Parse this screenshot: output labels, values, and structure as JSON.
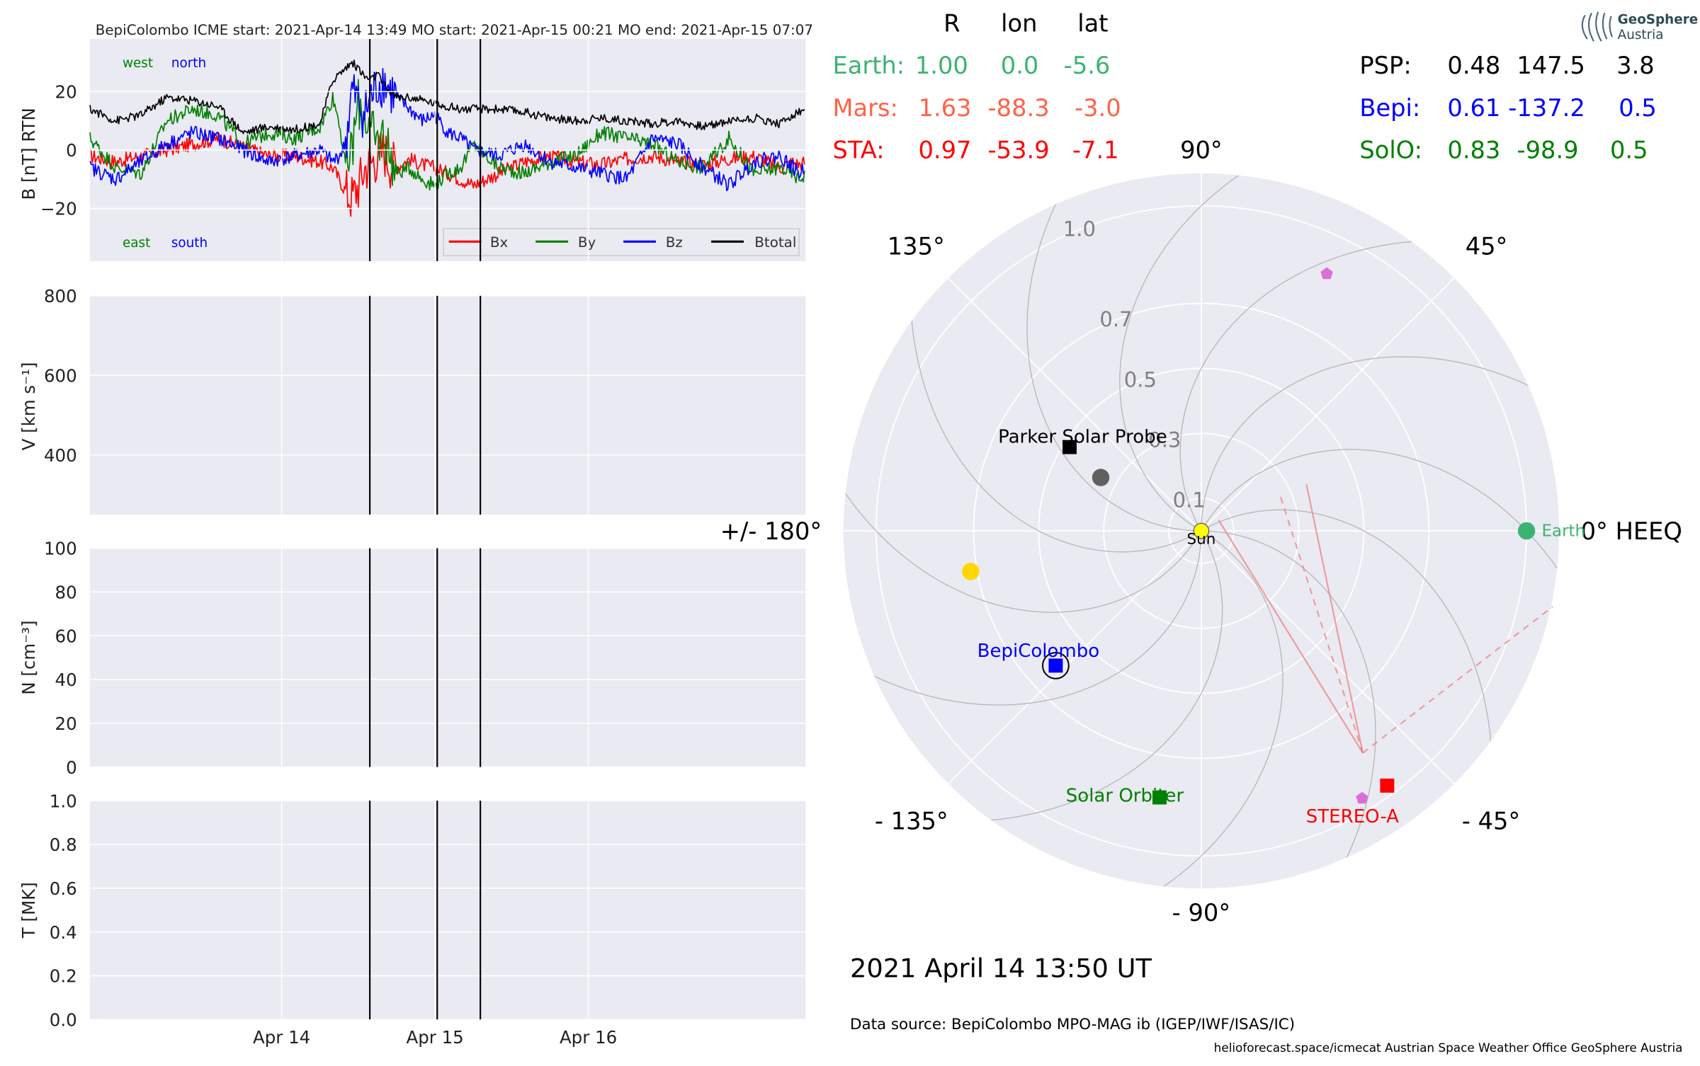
{
  "chart_data": [
    {
      "type": "line",
      "title": "BepiColombo    ICME start: 2021-Apr-14 13:49   MO start: 2021-Apr-15 00:21   MO end: 2021-Apr-15 07:07",
      "ylabel": "B [nT] RTN",
      "ylim": [
        -38,
        38
      ],
      "yticks": [
        "20",
        "0",
        "−20"
      ],
      "xticks": [
        "Apr 14",
        "Apr 15",
        "Apr 16"
      ],
      "annotations": {
        "top_left": [
          "west",
          "north"
        ],
        "bottom_left": [
          "east",
          "south"
        ]
      },
      "legend": {
        "placement": "lower-right",
        "entries": [
          "Bx",
          "By",
          "Bz",
          "Btotal"
        ]
      },
      "event_times": [
        "2021-04-14 13:49",
        "2021-04-15 00:21",
        "2021-04-15 07:07"
      ],
      "series": [
        {
          "name": "Bx",
          "color": "#ff0000",
          "x_hours": [
            0,
            4,
            8,
            12,
            16,
            20,
            24,
            28,
            32,
            36,
            38,
            39,
            40,
            41,
            42,
            43,
            44,
            45,
            46,
            47,
            48,
            50,
            52,
            54,
            56,
            58,
            60,
            64,
            68,
            72,
            76,
            80,
            84,
            88,
            92,
            96,
            100,
            104,
            108,
            110,
            111,
            112
          ],
          "values": [
            -2,
            -4,
            -2,
            0,
            2,
            4,
            1,
            -2,
            -2,
            -4,
            -6,
            -10,
            -14,
            -16,
            -12,
            -6,
            -4,
            -2,
            0,
            -4,
            -6,
            -3,
            -5,
            -6,
            -8,
            -10,
            -12,
            -8,
            -4,
            -2,
            -4,
            -5,
            -3,
            -2,
            -4,
            -5,
            -3,
            -2,
            -6,
            -4,
            -5,
            -4
          ]
        },
        {
          "name": "By",
          "color": "#008000",
          "x_hours": [
            0,
            4,
            8,
            12,
            16,
            20,
            24,
            28,
            32,
            36,
            38,
            39,
            40,
            41,
            42,
            43,
            44,
            45,
            46,
            47,
            48,
            50,
            52,
            54,
            56,
            58,
            60,
            64,
            68,
            72,
            76,
            80,
            84,
            88,
            92,
            96,
            100,
            104,
            108,
            110,
            111,
            112
          ],
          "values": [
            4,
            -6,
            -8,
            10,
            14,
            12,
            2,
            6,
            4,
            8,
            18,
            10,
            -6,
            0,
            16,
            12,
            6,
            2,
            6,
            -2,
            -8,
            -6,
            -10,
            -12,
            -8,
            -6,
            2,
            -6,
            -8,
            -4,
            -2,
            6,
            4,
            2,
            -4,
            -6,
            4,
            -8,
            -6,
            -8,
            -10,
            -8
          ]
        },
        {
          "name": "Bz",
          "color": "#0000ff",
          "x_hours": [
            0,
            4,
            8,
            12,
            16,
            20,
            24,
            28,
            32,
            36,
            38,
            39,
            40,
            41,
            42,
            43,
            44,
            45,
            46,
            47,
            48,
            50,
            52,
            54,
            56,
            58,
            60,
            64,
            68,
            72,
            76,
            80,
            84,
            88,
            92,
            96,
            100,
            104,
            108,
            110,
            111,
            112
          ],
          "values": [
            -6,
            -10,
            -4,
            2,
            6,
            4,
            0,
            -4,
            -2,
            0,
            -4,
            -2,
            2,
            20,
            16,
            12,
            18,
            22,
            24,
            20,
            18,
            14,
            10,
            12,
            6,
            4,
            0,
            -2,
            2,
            -4,
            -6,
            -8,
            -10,
            4,
            2,
            -6,
            -12,
            -4,
            -2,
            -6,
            -8,
            -6
          ]
        },
        {
          "name": "Btotal",
          "color": "#000000",
          "x_hours": [
            0,
            4,
            8,
            12,
            16,
            20,
            24,
            28,
            32,
            36,
            38,
            39,
            40,
            41,
            42,
            43,
            44,
            45,
            46,
            47,
            48,
            50,
            52,
            54,
            56,
            58,
            60,
            64,
            68,
            72,
            76,
            80,
            84,
            88,
            92,
            96,
            100,
            104,
            108,
            110,
            111,
            112
          ],
          "values": [
            14,
            10,
            12,
            18,
            17,
            15,
            6,
            8,
            7,
            9,
            24,
            26,
            28,
            30,
            28,
            25,
            24,
            26,
            22,
            20,
            18,
            18,
            17,
            16,
            15,
            14,
            14,
            14,
            13,
            11,
            10,
            11,
            10,
            9,
            10,
            8,
            10,
            11,
            9,
            12,
            13,
            14
          ]
        }
      ]
    },
    {
      "type": "line",
      "ylabel": "V [km s⁻¹]",
      "ylim": [
        250,
        800
      ],
      "yticks": [
        "800",
        "600",
        "400"
      ],
      "xticks": [
        "Apr 14",
        "Apr 15",
        "Apr 16"
      ],
      "series": []
    },
    {
      "type": "line",
      "ylabel": "N [cm⁻³]",
      "ylim": [
        0,
        100
      ],
      "yticks": [
        "100",
        "80",
        "60",
        "40",
        "20",
        "0"
      ],
      "xticks": [
        "Apr 14",
        "Apr 15",
        "Apr 16"
      ],
      "series": []
    },
    {
      "type": "line",
      "ylabel": "T [MK]",
      "ylim": [
        0,
        1
      ],
      "yticks": [
        "1.0",
        "0.8",
        "0.6",
        "0.4",
        "0.2",
        "0.0"
      ],
      "xticks": [
        "Apr 14",
        "Apr 15",
        "Apr 16"
      ],
      "series": []
    },
    {
      "type": "scatter",
      "subtype": "polar",
      "angle_labels": [
        "90°",
        "45°",
        "0° HEEQ",
        "- 45°",
        "- 90°",
        "- 135°",
        "+/- 180°",
        "135°"
      ],
      "radial_labels": [
        "1.0",
        "0.7",
        "0.5",
        "0.3",
        "0.1"
      ],
      "radial_ticks": [
        1.0,
        0.7,
        0.5,
        0.3,
        0.1
      ],
      "rlim": [
        0,
        1.1
      ],
      "points": [
        {
          "label": "Sun",
          "r": 0,
          "lon": 0,
          "color": "#ffff00",
          "marker": "circle"
        },
        {
          "label": "Earth",
          "r": 1.0,
          "lon": 0,
          "color": "#3cb371",
          "marker": "circle"
        },
        {
          "label": "STEREO-A",
          "r": 0.97,
          "lon": -53.9,
          "color": "#ff0000",
          "marker": "square"
        },
        {
          "label": "BepiColombo",
          "r": 0.61,
          "lon": -137.2,
          "color": "#0000ff",
          "marker": "square"
        },
        {
          "label": "Solar Orbiter",
          "r": 0.83,
          "lon": -98.9,
          "color": "#008000",
          "marker": "square"
        },
        {
          "label": "Parker Solar Probe",
          "r": 0.48,
          "lon": 147.5,
          "color": "#000000",
          "marker": "square"
        },
        {
          "label": "",
          "r": 0.35,
          "lon": 152,
          "color": "#606060",
          "marker": "circle"
        },
        {
          "label": "",
          "r": 0.72,
          "lon": -170,
          "color": "#ffd700",
          "marker": "circle"
        },
        {
          "label": "",
          "r": 0.88,
          "lon": 64,
          "color": "#da70d6",
          "marker": "pentagon"
        },
        {
          "label": "",
          "r": 0.96,
          "lon": -59,
          "color": "#da70d6",
          "marker": "pentagon"
        }
      ]
    }
  ],
  "positions_table": {
    "headers": [
      "R",
      "lon",
      "lat"
    ],
    "rows": [
      {
        "name": "Earth:",
        "R": "1.00",
        "lon": "0.0",
        "lat": "-5.6",
        "color": "#3cb371"
      },
      {
        "name": "Mars:",
        "R": "1.63",
        "lon": "-88.3",
        "lat": "-3.0",
        "color": "#ff6347"
      },
      {
        "name": "STA:",
        "R": "0.97",
        "lon": "-53.9",
        "lat": "-7.1",
        "color": "#ff0000"
      },
      {
        "name": "PSP:",
        "R": "0.48",
        "lon": "147.5",
        "lat": "3.8",
        "color": "#000000"
      },
      {
        "name": "Bepi:",
        "R": "0.61",
        "lon": "-137.2",
        "lat": "0.5",
        "color": "#0000ff"
      },
      {
        "name": "SolO:",
        "R": "0.83",
        "lon": "-98.9",
        "lat": "0.5",
        "color": "#008000"
      }
    ]
  },
  "logo": {
    "line1": "GeoSphere",
    "line2": "Austria",
    "icon": "geosphere-logo-icon"
  },
  "timestamp": "2021 April 14  13:50 UT",
  "data_source": "Data source: BepiColombo MPO-MAG ib (IGEP/IWF/ISAS/IC)",
  "footer": "helioforecast.space/icmecat   Austrian Space Weather Office   GeoSphere Austria"
}
